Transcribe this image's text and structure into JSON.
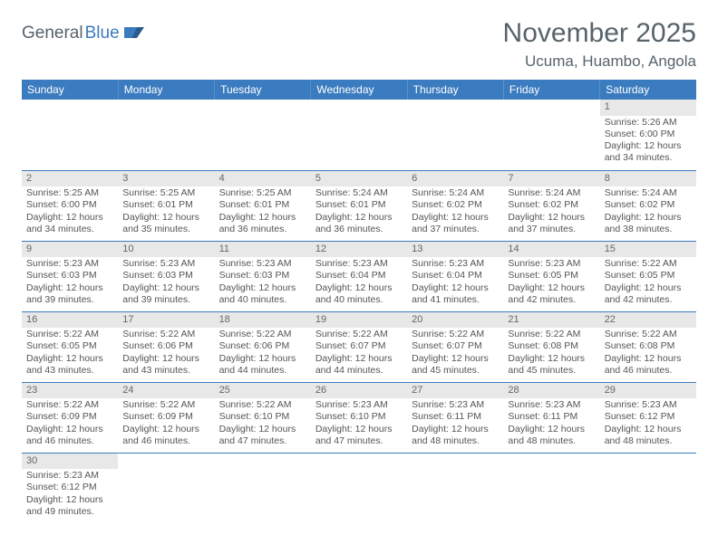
{
  "logo": {
    "part1": "General",
    "part2": "Blue"
  },
  "title": "November 2025",
  "location": "Ucuma, Huambo, Angola",
  "colors": {
    "header_bg": "#3b7bbf",
    "header_text": "#ffffff",
    "daynum_bg": "#e8e8e8",
    "row_border": "#3b7bbf",
    "text": "#555555",
    "title_color": "#57636a"
  },
  "weekdays": [
    "Sunday",
    "Monday",
    "Tuesday",
    "Wednesday",
    "Thursday",
    "Friday",
    "Saturday"
  ],
  "weeks": [
    [
      null,
      null,
      null,
      null,
      null,
      null,
      {
        "n": "1",
        "sunrise": "5:26 AM",
        "sunset": "6:00 PM",
        "dl": "12 hours and 34 minutes."
      }
    ],
    [
      {
        "n": "2",
        "sunrise": "5:25 AM",
        "sunset": "6:00 PM",
        "dl": "12 hours and 34 minutes."
      },
      {
        "n": "3",
        "sunrise": "5:25 AM",
        "sunset": "6:01 PM",
        "dl": "12 hours and 35 minutes."
      },
      {
        "n": "4",
        "sunrise": "5:25 AM",
        "sunset": "6:01 PM",
        "dl": "12 hours and 36 minutes."
      },
      {
        "n": "5",
        "sunrise": "5:24 AM",
        "sunset": "6:01 PM",
        "dl": "12 hours and 36 minutes."
      },
      {
        "n": "6",
        "sunrise": "5:24 AM",
        "sunset": "6:02 PM",
        "dl": "12 hours and 37 minutes."
      },
      {
        "n": "7",
        "sunrise": "5:24 AM",
        "sunset": "6:02 PM",
        "dl": "12 hours and 37 minutes."
      },
      {
        "n": "8",
        "sunrise": "5:24 AM",
        "sunset": "6:02 PM",
        "dl": "12 hours and 38 minutes."
      }
    ],
    [
      {
        "n": "9",
        "sunrise": "5:23 AM",
        "sunset": "6:03 PM",
        "dl": "12 hours and 39 minutes."
      },
      {
        "n": "10",
        "sunrise": "5:23 AM",
        "sunset": "6:03 PM",
        "dl": "12 hours and 39 minutes."
      },
      {
        "n": "11",
        "sunrise": "5:23 AM",
        "sunset": "6:03 PM",
        "dl": "12 hours and 40 minutes."
      },
      {
        "n": "12",
        "sunrise": "5:23 AM",
        "sunset": "6:04 PM",
        "dl": "12 hours and 40 minutes."
      },
      {
        "n": "13",
        "sunrise": "5:23 AM",
        "sunset": "6:04 PM",
        "dl": "12 hours and 41 minutes."
      },
      {
        "n": "14",
        "sunrise": "5:23 AM",
        "sunset": "6:05 PM",
        "dl": "12 hours and 42 minutes."
      },
      {
        "n": "15",
        "sunrise": "5:22 AM",
        "sunset": "6:05 PM",
        "dl": "12 hours and 42 minutes."
      }
    ],
    [
      {
        "n": "16",
        "sunrise": "5:22 AM",
        "sunset": "6:05 PM",
        "dl": "12 hours and 43 minutes."
      },
      {
        "n": "17",
        "sunrise": "5:22 AM",
        "sunset": "6:06 PM",
        "dl": "12 hours and 43 minutes."
      },
      {
        "n": "18",
        "sunrise": "5:22 AM",
        "sunset": "6:06 PM",
        "dl": "12 hours and 44 minutes."
      },
      {
        "n": "19",
        "sunrise": "5:22 AM",
        "sunset": "6:07 PM",
        "dl": "12 hours and 44 minutes."
      },
      {
        "n": "20",
        "sunrise": "5:22 AM",
        "sunset": "6:07 PM",
        "dl": "12 hours and 45 minutes."
      },
      {
        "n": "21",
        "sunrise": "5:22 AM",
        "sunset": "6:08 PM",
        "dl": "12 hours and 45 minutes."
      },
      {
        "n": "22",
        "sunrise": "5:22 AM",
        "sunset": "6:08 PM",
        "dl": "12 hours and 46 minutes."
      }
    ],
    [
      {
        "n": "23",
        "sunrise": "5:22 AM",
        "sunset": "6:09 PM",
        "dl": "12 hours and 46 minutes."
      },
      {
        "n": "24",
        "sunrise": "5:22 AM",
        "sunset": "6:09 PM",
        "dl": "12 hours and 46 minutes."
      },
      {
        "n": "25",
        "sunrise": "5:22 AM",
        "sunset": "6:10 PM",
        "dl": "12 hours and 47 minutes."
      },
      {
        "n": "26",
        "sunrise": "5:23 AM",
        "sunset": "6:10 PM",
        "dl": "12 hours and 47 minutes."
      },
      {
        "n": "27",
        "sunrise": "5:23 AM",
        "sunset": "6:11 PM",
        "dl": "12 hours and 48 minutes."
      },
      {
        "n": "28",
        "sunrise": "5:23 AM",
        "sunset": "6:11 PM",
        "dl": "12 hours and 48 minutes."
      },
      {
        "n": "29",
        "sunrise": "5:23 AM",
        "sunset": "6:12 PM",
        "dl": "12 hours and 48 minutes."
      }
    ],
    [
      {
        "n": "30",
        "sunrise": "5:23 AM",
        "sunset": "6:12 PM",
        "dl": "12 hours and 49 minutes."
      },
      null,
      null,
      null,
      null,
      null,
      null
    ]
  ],
  "labels": {
    "sunrise": "Sunrise:",
    "sunset": "Sunset:",
    "daylight": "Daylight:"
  }
}
